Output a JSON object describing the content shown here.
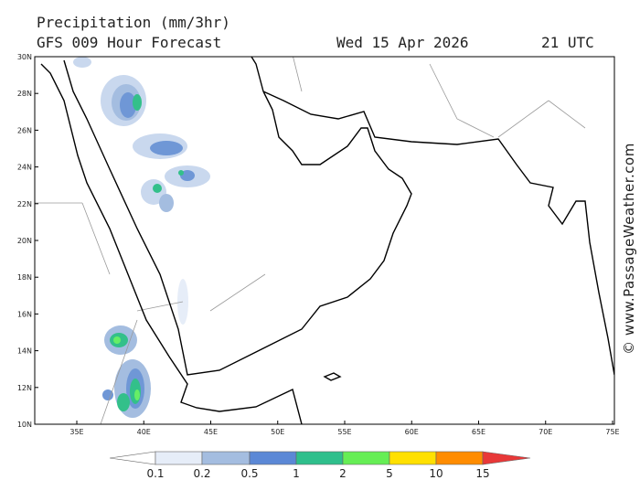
{
  "header": {
    "title": "Precipitation (mm/3hr)",
    "subtitle": "GFS 009 Hour Forecast",
    "date": "Wed 15 Apr 2026",
    "time": "21 UTC"
  },
  "axes": {
    "latitudes": [
      "30N",
      "28N",
      "26N",
      "24N",
      "22N",
      "20N",
      "18N",
      "16N",
      "14N",
      "12N",
      "10N"
    ],
    "longitudes": [
      "35E",
      "40E",
      "45E",
      "50E",
      "55E",
      "60E",
      "65E",
      "70E",
      "75E"
    ]
  },
  "legend": {
    "labels": [
      "0.1",
      "0.2",
      "0.5",
      "1",
      "2",
      "5",
      "10",
      "15"
    ]
  },
  "credit": "© www.PassageWeather.com"
}
